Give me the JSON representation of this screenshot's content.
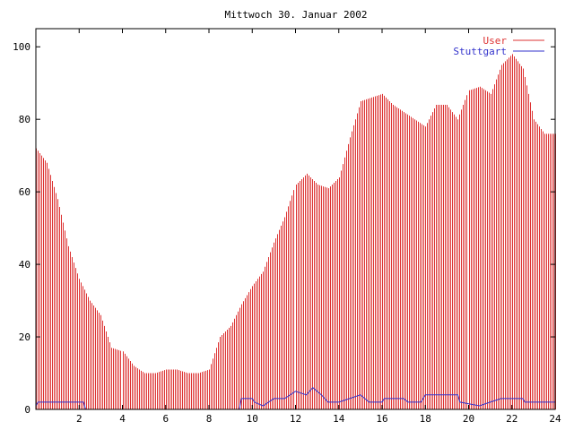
{
  "chart_data": {
    "type": "bar",
    "title": "Mittwoch 30. Januar 2002",
    "xlabel": "",
    "ylabel": "",
    "xlim": [
      0,
      24
    ],
    "ylim": [
      0,
      105
    ],
    "x_ticks": [
      2,
      4,
      6,
      8,
      10,
      12,
      14,
      16,
      18,
      20,
      22,
      24
    ],
    "y_ticks": [
      0,
      20,
      40,
      60,
      80,
      100
    ],
    "legend_position": "top-right",
    "grid": false,
    "series": [
      {
        "name": "User",
        "style": "impulses",
        "color": "#dd3333",
        "points": [
          [
            0.0,
            72
          ],
          [
            0.5,
            68
          ],
          [
            1.0,
            58
          ],
          [
            1.5,
            45
          ],
          [
            2.0,
            36
          ],
          [
            2.5,
            30
          ],
          [
            3.0,
            26
          ],
          [
            3.5,
            17
          ],
          [
            4.0,
            16
          ],
          [
            4.5,
            12
          ],
          [
            5.0,
            10
          ],
          [
            5.5,
            10
          ],
          [
            6.0,
            11
          ],
          [
            6.5,
            11
          ],
          [
            7.0,
            10
          ],
          [
            7.5,
            10
          ],
          [
            8.0,
            11
          ],
          [
            8.5,
            20
          ],
          [
            9.0,
            23
          ],
          [
            9.5,
            29
          ],
          [
            10.0,
            34
          ],
          [
            10.5,
            38
          ],
          [
            11.0,
            46
          ],
          [
            11.5,
            53
          ],
          [
            12.0,
            62
          ],
          [
            12.5,
            65
          ],
          [
            13.0,
            62
          ],
          [
            13.5,
            61
          ],
          [
            14.0,
            64
          ],
          [
            14.5,
            75
          ],
          [
            15.0,
            85
          ],
          [
            15.5,
            86
          ],
          [
            16.0,
            87
          ],
          [
            16.5,
            84
          ],
          [
            17.0,
            82
          ],
          [
            17.5,
            80
          ],
          [
            18.0,
            78
          ],
          [
            18.5,
            84
          ],
          [
            19.0,
            84
          ],
          [
            19.5,
            80
          ],
          [
            20.0,
            88
          ],
          [
            20.5,
            89
          ],
          [
            21.0,
            87
          ],
          [
            21.5,
            95
          ],
          [
            22.0,
            98
          ],
          [
            22.5,
            94
          ],
          [
            23.0,
            80
          ],
          [
            23.5,
            76
          ],
          [
            24.0,
            76
          ]
        ]
      },
      {
        "name": "Stuttgart",
        "style": "line",
        "color": "#3333cc",
        "points": [
          [
            0.0,
            1
          ],
          [
            0.1,
            2
          ],
          [
            2.2,
            2
          ],
          [
            2.3,
            0
          ],
          [
            9.4,
            0
          ],
          [
            9.5,
            3
          ],
          [
            10.0,
            3
          ],
          [
            10.1,
            2
          ],
          [
            10.5,
            1
          ],
          [
            11.0,
            3
          ],
          [
            11.5,
            3
          ],
          [
            12.0,
            5
          ],
          [
            12.5,
            4
          ],
          [
            12.8,
            6
          ],
          [
            13.2,
            4
          ],
          [
            13.5,
            2
          ],
          [
            14.0,
            2
          ],
          [
            14.5,
            3
          ],
          [
            15.0,
            4
          ],
          [
            15.4,
            2
          ],
          [
            16.0,
            2
          ],
          [
            16.1,
            3
          ],
          [
            17.0,
            3
          ],
          [
            17.2,
            2
          ],
          [
            17.8,
            2
          ],
          [
            18.0,
            4
          ],
          [
            19.5,
            4
          ],
          [
            19.6,
            2
          ],
          [
            20.5,
            1
          ],
          [
            21.0,
            2
          ],
          [
            21.5,
            3
          ],
          [
            22.5,
            3
          ],
          [
            22.6,
            2
          ],
          [
            24.0,
            2
          ]
        ]
      }
    ]
  }
}
